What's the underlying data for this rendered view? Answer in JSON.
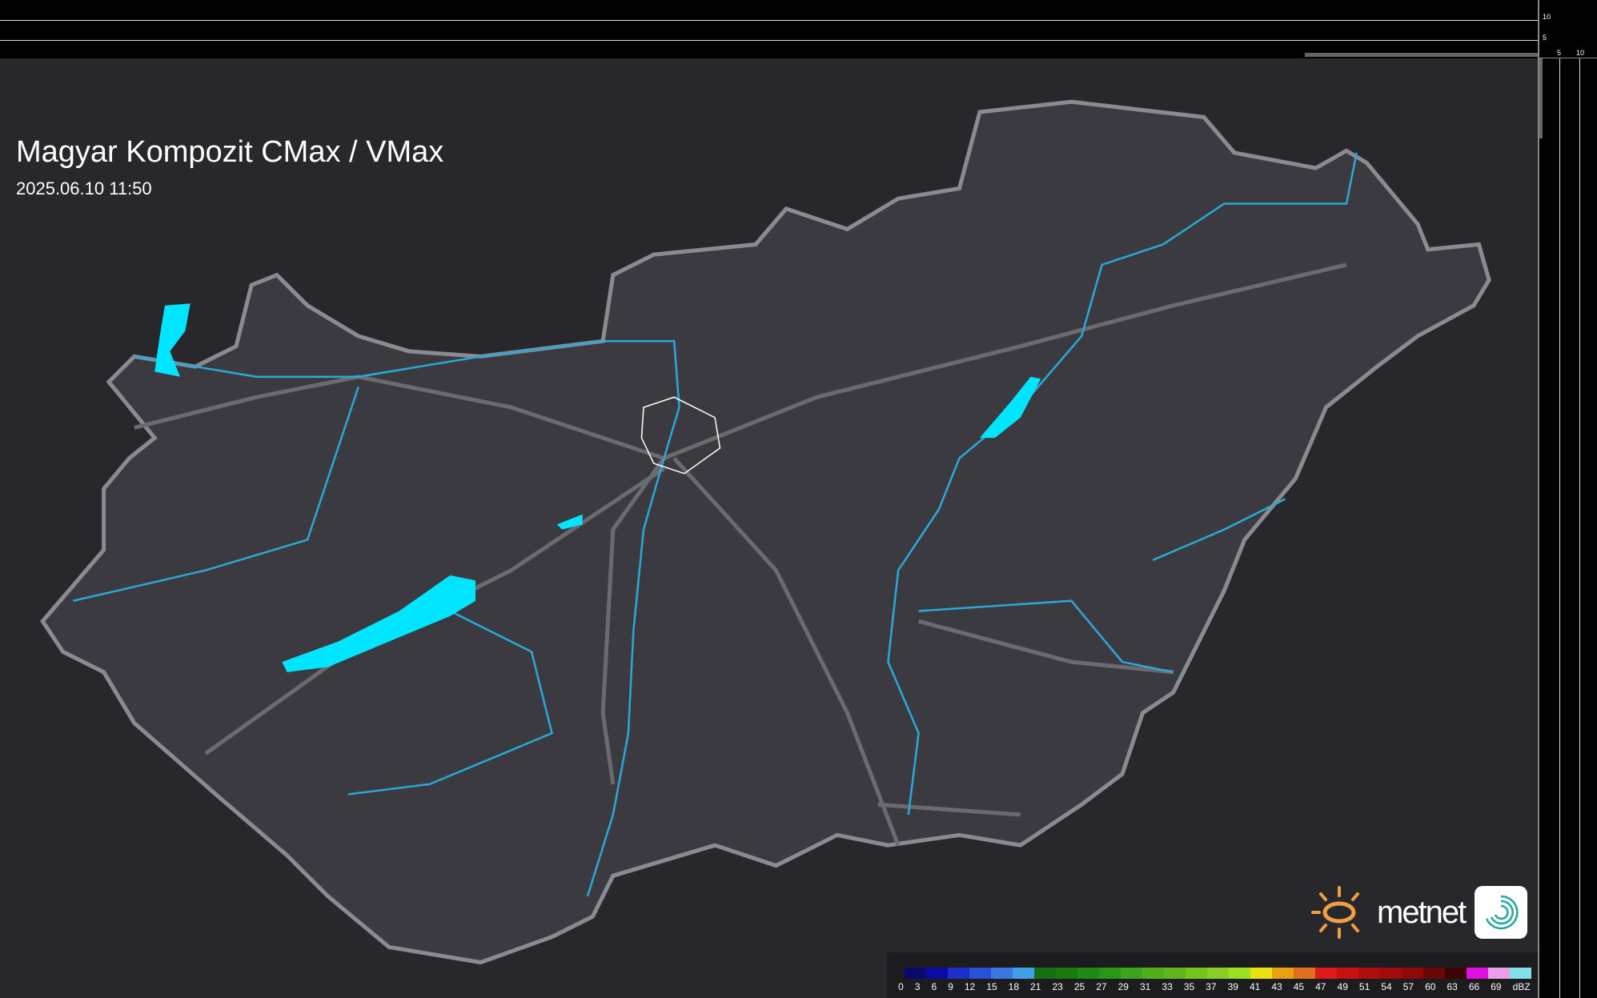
{
  "title": "Magyar Kompozit CMax / VMax",
  "datetime": "2025.06.10 11:50",
  "axis": {
    "top_labels": [
      "10",
      "5"
    ],
    "right_labels": [
      "5",
      "10"
    ]
  },
  "logo": {
    "text": "metnet",
    "icon": "sun-logo-icon",
    "app_icon": "spiral-app-icon"
  },
  "legend": {
    "unit": "dBZ",
    "labels": [
      "0",
      "3",
      "6",
      "9",
      "12",
      "15",
      "18",
      "21",
      "23",
      "25",
      "27",
      "29",
      "31",
      "33",
      "35",
      "37",
      "39",
      "41",
      "43",
      "45",
      "47",
      "49",
      "51",
      "54",
      "57",
      "60",
      "63",
      "66",
      "69",
      "dBZ"
    ],
    "colors": [
      "#0a0a6e",
      "#0a0aa5",
      "#1a2ec8",
      "#2a50d8",
      "#3a78e0",
      "#40a0e8",
      "#146e14",
      "#1a7a10",
      "#1e8a14",
      "#2a9618",
      "#3ca41c",
      "#50b01c",
      "#60b81c",
      "#74c41e",
      "#8ad024",
      "#9ce024",
      "#e8e010",
      "#e8a010",
      "#e07020",
      "#e01818",
      "#c81010",
      "#b00e0e",
      "#a00c0c",
      "#8c0a0a",
      "#6a0606",
      "#3c0404",
      "#e010e0",
      "#e8a0e8",
      "#80e0e8"
    ]
  },
  "colors": {
    "water": "#00e5ff",
    "border": "#8a8a92",
    "river": "#2aa8d8",
    "land": "#3a3a40"
  }
}
